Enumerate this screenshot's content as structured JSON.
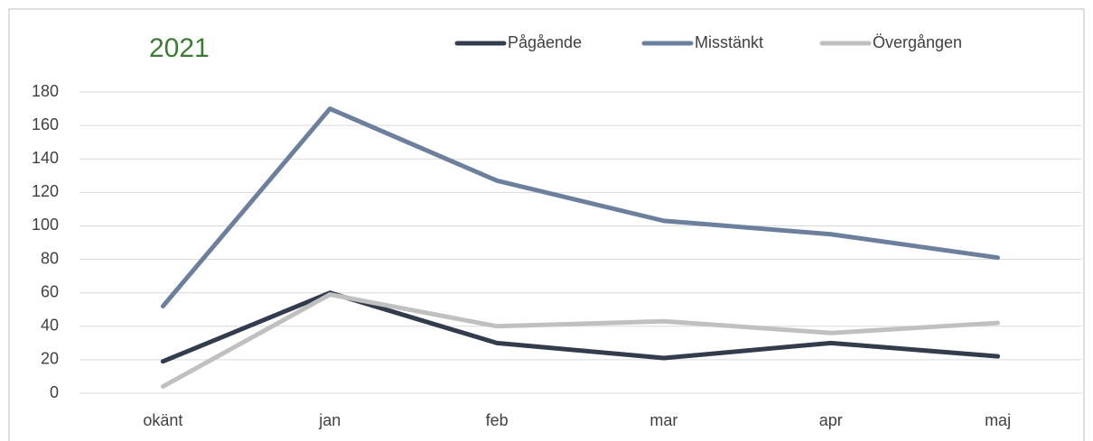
{
  "chart_data": {
    "type": "line",
    "title": "2021",
    "categories": [
      "okänt",
      "jan",
      "feb",
      "mar",
      "apr",
      "maj"
    ],
    "series": [
      {
        "name": "Pågående",
        "color": "#323c4d",
        "values": [
          19,
          60,
          30,
          21,
          30,
          22
        ]
      },
      {
        "name": "Misstänkt",
        "color": "#6c7f9c",
        "values": [
          52,
          170,
          127,
          103,
          95,
          81
        ]
      },
      {
        "name": "Övergången",
        "color": "#c0c0c0",
        "values": [
          4,
          59,
          40,
          43,
          36,
          42
        ]
      }
    ],
    "ylim": [
      0,
      180
    ],
    "yticks": [
      0,
      20,
      40,
      60,
      80,
      100,
      120,
      140,
      160,
      180
    ],
    "grid": true,
    "legend": "top"
  }
}
